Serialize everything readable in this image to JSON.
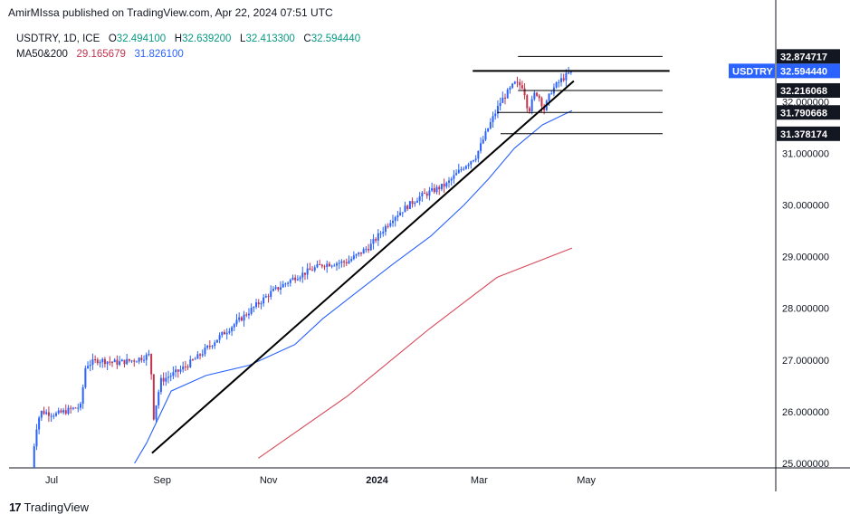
{
  "header": {
    "published": "AmirMIssa published on TradingView.com, Apr 22, 2024 07:51 UTC"
  },
  "legend": {
    "symbol": "USDTRY, 1D, ICE",
    "o_label": "O",
    "o_value": "32.494100",
    "h_label": "H",
    "h_value": "32.639200",
    "l_label": "L",
    "l_value": "32.413300",
    "c_label": "C",
    "c_value": "32.594440",
    "ma_label": "MA50&200",
    "ma50_value": "29.165679",
    "ma200_value": "31.826100"
  },
  "footer": {
    "brand": "TradingView",
    "logo_glyph": "17"
  },
  "colors": {
    "up": "#2962ff",
    "down": "#c2334d",
    "ma50": "#2962ff",
    "ma200": "#d84a5a",
    "axis_border": "#131722",
    "tag_blue": "#2962ff",
    "tag_black": "#131722"
  },
  "chart_data": {
    "type": "candlestick",
    "symbol": "USDTRY",
    "x_tick_labels": [
      "Jul",
      "Sep",
      "Nov",
      "2024",
      "Mar",
      "May"
    ],
    "y_tick_labels": [
      "25.000000",
      "26.000000",
      "27.000000",
      "28.000000",
      "29.000000",
      "30.000000",
      "31.000000",
      "32.000000"
    ],
    "ylim": [
      25.0,
      32.5
    ],
    "grid": false,
    "price_tags": [
      {
        "label": "32.874717",
        "value": 32.874717,
        "style": "dark"
      },
      {
        "label": "USDTRY",
        "value": 32.59444,
        "style": "blue-name"
      },
      {
        "label": "32.594440",
        "value": 32.59444,
        "style": "blue"
      },
      {
        "label": "32.216068",
        "value": 32.216068,
        "style": "dark"
      },
      {
        "label": "31.790668",
        "value": 31.790668,
        "style": "dark"
      },
      {
        "label": "31.378174",
        "value": 31.378174,
        "style": "dark"
      }
    ],
    "horizontal_levels": [
      {
        "value": 32.874717,
        "from": "2024-03-22",
        "to": "2024-04-22"
      },
      {
        "value": 32.59444,
        "from": "2024-02-25",
        "to": "2024-04-26"
      },
      {
        "value": 32.216068,
        "from": "2024-03-22",
        "to": "2024-04-22"
      },
      {
        "value": 31.790668,
        "from": "2024-03-10",
        "to": "2024-04-22"
      },
      {
        "value": 31.378174,
        "from": "2024-03-12",
        "to": "2024-04-22"
      }
    ],
    "trendlines": [
      {
        "from": [
          "2023-08-25",
          25.2
        ],
        "to": [
          "2024-04-23",
          32.4
        ]
      }
    ],
    "ma50_line": [
      [
        "2023-10-25",
        25.1
      ],
      [
        "2023-12-15",
        26.3
      ],
      [
        "2024-01-31",
        27.6
      ],
      [
        "2024-03-10",
        28.6
      ],
      [
        "2024-04-22",
        29.165679
      ]
    ],
    "ma200_line": [
      [
        "2023-08-15",
        25.0
      ],
      [
        "2023-08-22",
        25.4
      ],
      [
        "2023-09-05",
        26.4
      ],
      [
        "2023-09-25",
        26.7
      ],
      [
        "2023-10-20",
        26.9
      ],
      [
        "2023-11-15",
        27.3
      ],
      [
        "2023-12-01",
        27.8
      ],
      [
        "2023-12-20",
        28.3
      ],
      [
        "2024-01-10",
        28.85
      ],
      [
        "2024-02-01",
        29.4
      ],
      [
        "2024-02-20",
        30.0
      ],
      [
        "2024-03-05",
        30.5
      ],
      [
        "2024-03-20",
        31.1
      ],
      [
        "2024-04-05",
        31.55
      ],
      [
        "2024-04-22",
        31.8261
      ]
    ],
    "price_path": [
      [
        "2023-06-17",
        24.8
      ],
      [
        "2023-06-19",
        25.6
      ],
      [
        "2023-06-22",
        26.0
      ],
      [
        "2023-07-01",
        25.95
      ],
      [
        "2023-07-10",
        26.05
      ],
      [
        "2023-07-15",
        26.1
      ],
      [
        "2023-07-18",
        26.9
      ],
      [
        "2023-07-25",
        27.0
      ],
      [
        "2023-08-05",
        26.95
      ],
      [
        "2023-08-15",
        27.0
      ],
      [
        "2023-08-24",
        27.1
      ],
      [
        "2023-08-25",
        26.5
      ],
      [
        "2023-08-26",
        25.9
      ],
      [
        "2023-08-30",
        26.6
      ],
      [
        "2023-09-10",
        26.8
      ],
      [
        "2023-09-20",
        27.05
      ],
      [
        "2023-10-01",
        27.4
      ],
      [
        "2023-10-15",
        27.8
      ],
      [
        "2023-11-01",
        28.3
      ],
      [
        "2023-11-15",
        28.6
      ],
      [
        "2023-12-01",
        28.85
      ],
      [
        "2023-12-15",
        28.9
      ],
      [
        "2023-12-28",
        29.2
      ],
      [
        "2024-01-10",
        29.75
      ],
      [
        "2024-01-25",
        30.15
      ],
      [
        "2024-02-10",
        30.4
      ],
      [
        "2024-02-20",
        30.75
      ],
      [
        "2024-02-27",
        30.95
      ],
      [
        "2024-03-05",
        31.5
      ],
      [
        "2024-03-12",
        32.0
      ],
      [
        "2024-03-20",
        32.35
      ],
      [
        "2024-03-25",
        32.3
      ],
      [
        "2024-03-28",
        31.8
      ],
      [
        "2024-04-01",
        32.2
      ],
      [
        "2024-04-03",
        32.1
      ],
      [
        "2024-04-06",
        31.85
      ],
      [
        "2024-04-10",
        32.2
      ],
      [
        "2024-04-15",
        32.4
      ],
      [
        "2024-04-22",
        32.59444
      ]
    ]
  }
}
